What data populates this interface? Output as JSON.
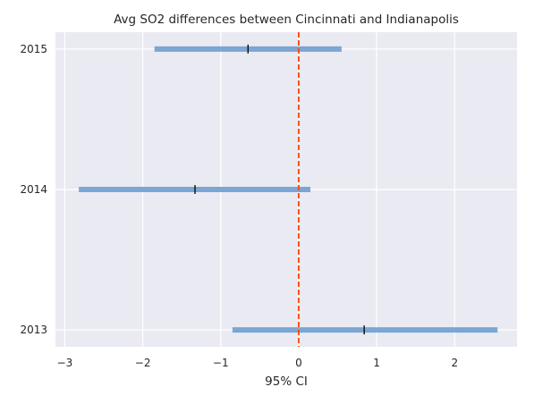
{
  "chart_data": {
    "type": "interval",
    "title": "Avg SO2 differences between Cincinnati and Indianapolis",
    "xlabel": "95% CI",
    "ylabel": "",
    "xlim": [
      -3.12,
      2.8
    ],
    "ylim": [
      2012.88,
      2015.12
    ],
    "x_ticks": [
      -3,
      -2,
      -1,
      0,
      1,
      2
    ],
    "x_tick_labels": [
      "−3",
      "−2",
      "−1",
      "0",
      "1",
      "2"
    ],
    "y_ticks": [
      2013,
      2014,
      2015
    ],
    "y_tick_labels": [
      "2013",
      "2014",
      "2015"
    ],
    "grid": true,
    "reference_line": {
      "x": 0,
      "style": "dashed",
      "color": "#ff4500"
    },
    "interval_color": "#6699cc",
    "estimate_color": "#000000",
    "intervals": [
      {
        "year": 2015,
        "low": -1.85,
        "high": 0.55,
        "estimate": -0.65
      },
      {
        "year": 2014,
        "low": -2.82,
        "high": 0.15,
        "estimate": -1.33
      },
      {
        "year": 2013,
        "low": -0.85,
        "high": 2.55,
        "estimate": 0.84
      }
    ]
  }
}
